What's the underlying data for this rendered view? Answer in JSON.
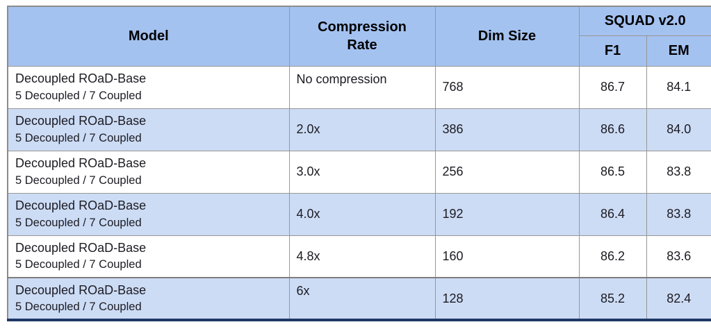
{
  "colors": {
    "header_fill": "#A4C2F0",
    "row_alt_fill": "#CDDCF5",
    "row_fill": "#FFFFFF",
    "grid_line": "#969696",
    "outer_border": "#8C8C8C",
    "bottom_border": "#1F3864",
    "text": "#1B1B22"
  },
  "table": {
    "headers": {
      "model": "Model",
      "compression_rate": "Compression\nRate",
      "dim_size": "Dim Size",
      "squad_group": "SQUAD v2.0",
      "f1": "F1",
      "em": "EM"
    },
    "rows": [
      {
        "model_line1": "Decoupled ROaD-Base",
        "model_line2": "5 Decoupled / 7 Coupled",
        "compression_rate": "No compression",
        "dim_size": "768",
        "f1": "86.7",
        "em": "84.1"
      },
      {
        "model_line1": "Decoupled ROaD-Base",
        "model_line2": "5 Decoupled / 7 Coupled",
        "compression_rate": "2.0x",
        "dim_size": "386",
        "f1": "86.6",
        "em": "84.0"
      },
      {
        "model_line1": "Decoupled ROaD-Base",
        "model_line2": "5 Decoupled / 7 Coupled",
        "compression_rate": "3.0x",
        "dim_size": "256",
        "f1": "86.5",
        "em": "83.8"
      },
      {
        "model_line1": "Decoupled ROaD-Base",
        "model_line2": "5 Decoupled / 7 Coupled",
        "compression_rate": "4.0x",
        "dim_size": "192",
        "f1": "86.4",
        "em": "83.8"
      },
      {
        "model_line1": "Decoupled ROaD-Base",
        "model_line2": "5 Decoupled / 7 Coupled",
        "compression_rate": "4.8x",
        "dim_size": "160",
        "f1": "86.2",
        "em": "83.6"
      },
      {
        "model_line1": "Decoupled ROaD-Base",
        "model_line2": "5 Decoupled / 7 Coupled",
        "compression_rate": "6x",
        "dim_size": "128",
        "f1": "85.2",
        "em": "82.4"
      }
    ]
  }
}
